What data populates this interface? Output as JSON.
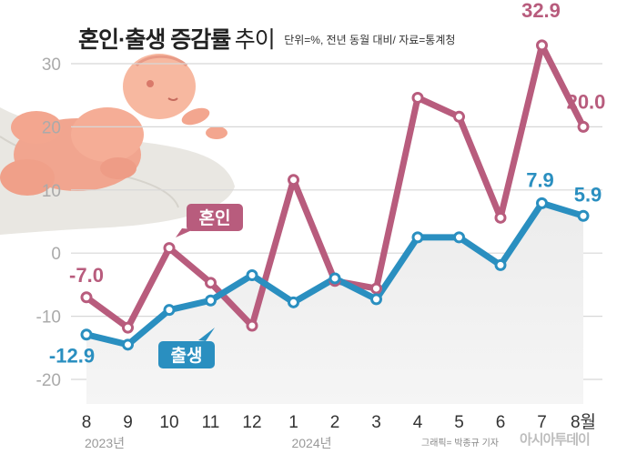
{
  "title": {
    "main": "혼인·출생 증감률",
    "sub": "추이",
    "note": "단위=%, 전년 동월 대비/ 자료=통계청"
  },
  "credit": "그래픽= 박종규 기자",
  "brand": "아시아투데이",
  "chart_data": {
    "type": "line",
    "categories": [
      "8",
      "9",
      "10",
      "11",
      "12",
      "1",
      "2",
      "3",
      "4",
      "5",
      "6",
      "7",
      "8월"
    ],
    "year_labels": [
      "2023년",
      "2024년"
    ],
    "yticks": [
      30,
      20,
      10,
      0,
      -10,
      -20
    ],
    "ylim": [
      -25,
      33
    ],
    "grid": true,
    "series": [
      {
        "name": "혼인",
        "color": "#b85c7d",
        "values": [
          -7.0,
          -11.8,
          0.8,
          -4.7,
          -11.5,
          11.6,
          -4.4,
          -5.6,
          24.6,
          21.6,
          5.6,
          32.9,
          20.0
        ],
        "labels": {
          "0": "-7.0",
          "11": "32.9",
          "12": "20.0"
        }
      },
      {
        "name": "출생",
        "color": "#2a8fc0",
        "values": [
          -12.9,
          -14.5,
          -9.0,
          -7.5,
          -3.5,
          -7.8,
          -4.0,
          -7.3,
          2.5,
          2.5,
          -1.9,
          7.9,
          5.9
        ],
        "labels": {
          "0": "-12.9",
          "11": "7.9",
          "12": "5.9"
        }
      }
    ]
  }
}
